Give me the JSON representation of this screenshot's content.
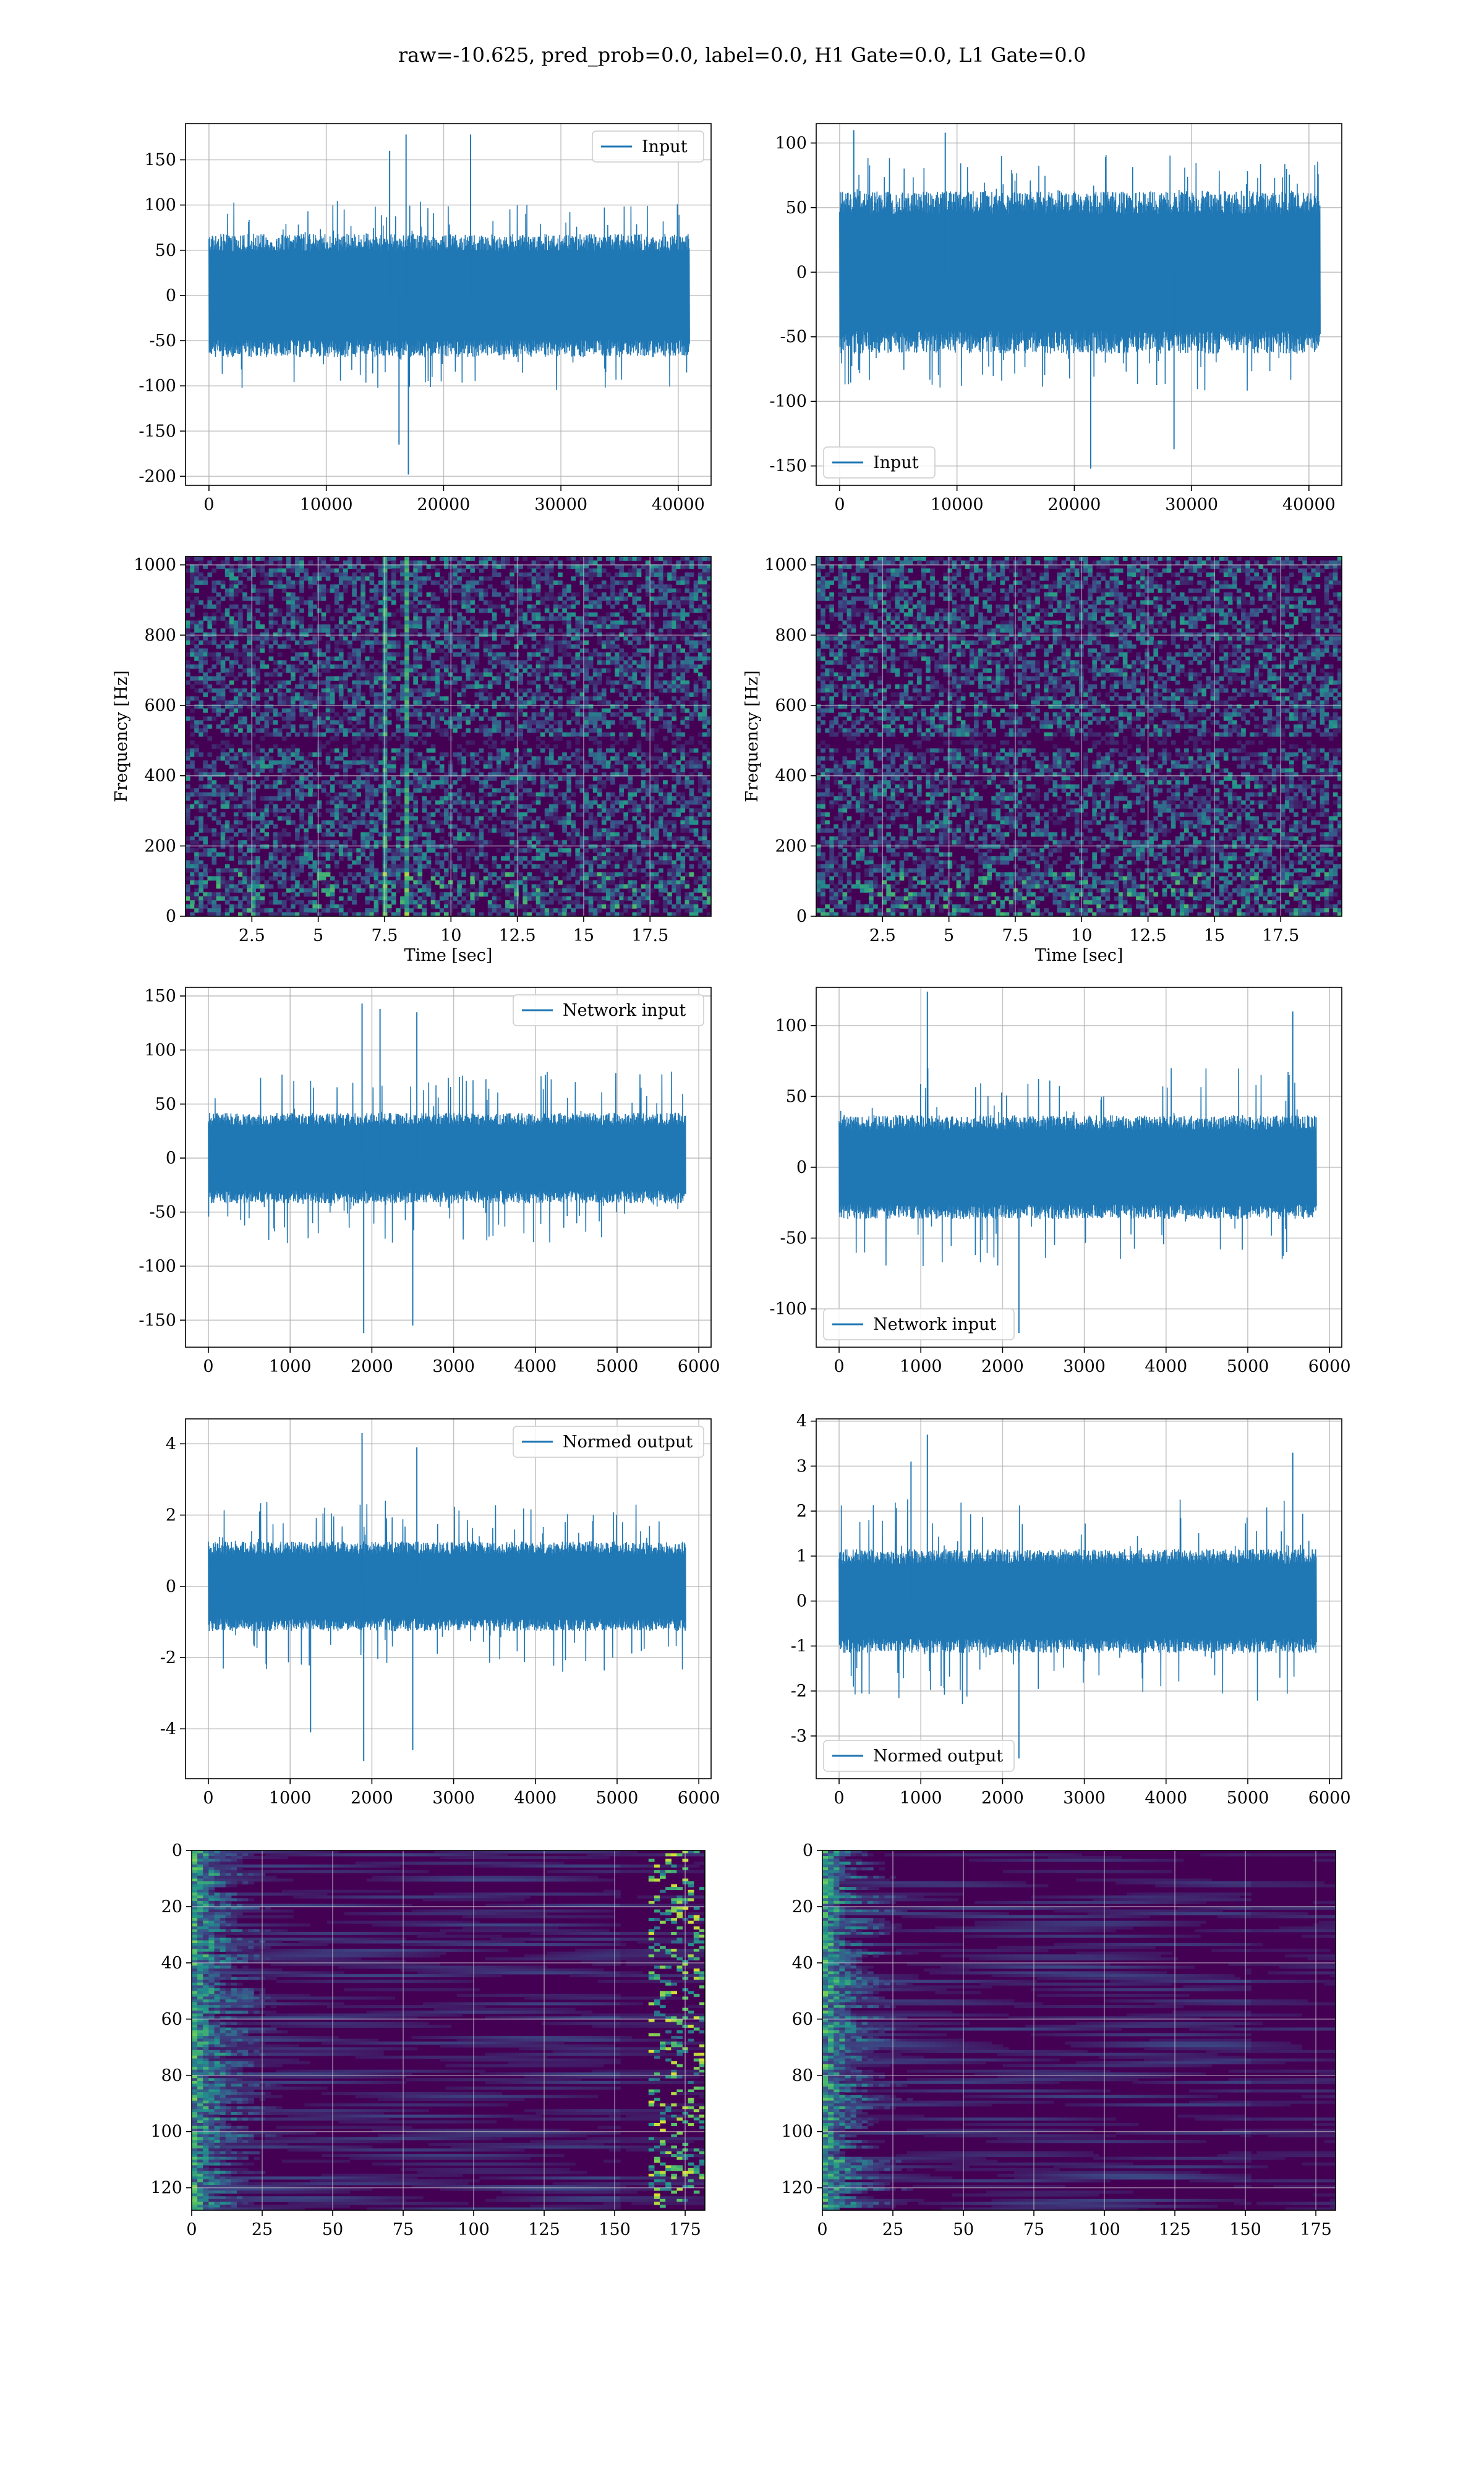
{
  "figure": {
    "title": "raw=-10.625, pred_prob=0.0, label=0.0, H1 Gate=0.0, L1 Gate=0.0"
  },
  "colors": {
    "line": "#1f77b4",
    "grid": "#b0b0b0",
    "viridis_low": "#440154",
    "viridis_mid": "#21918c",
    "viridis_high": "#fde725"
  },
  "chart_data": [
    {
      "id": "input-left",
      "type": "line",
      "xlim": [
        -2000,
        42800
      ],
      "ylim": [
        -210,
        190
      ],
      "xticks": [
        0,
        10000,
        20000,
        30000,
        40000
      ],
      "yticks": [
        -200,
        -150,
        -100,
        -50,
        0,
        50,
        100,
        150
      ],
      "series": [
        {
          "name": "Input",
          "n": 40960,
          "envelope": 65,
          "peak": 105,
          "spikes": [
            [
              15400,
              160
            ],
            [
              16200,
              -165
            ],
            [
              16800,
              178
            ],
            [
              17000,
              -198
            ],
            [
              22300,
              178
            ]
          ]
        }
      ],
      "legend": "upper right",
      "grid": true
    },
    {
      "id": "input-right",
      "type": "line",
      "xlim": [
        -2000,
        42800
      ],
      "ylim": [
        -165,
        115
      ],
      "xticks": [
        0,
        10000,
        20000,
        30000,
        40000
      ],
      "yticks": [
        -150,
        -100,
        -50,
        0,
        50,
        100
      ],
      "series": [
        {
          "name": "Input",
          "n": 40960,
          "envelope": 60,
          "peak": 92,
          "spikes": [
            [
              21400,
              -152
            ],
            [
              28500,
              -137
            ],
            [
              1200,
              110
            ],
            [
              9000,
              108
            ]
          ]
        }
      ],
      "legend": "lower left",
      "grid": true
    },
    {
      "id": "spectrogram-left",
      "type": "heatmap",
      "xlim": [
        0,
        19.8
      ],
      "ylim": [
        0,
        1024
      ],
      "xticks": [
        2.5,
        5.0,
        7.5,
        10.0,
        12.5,
        15.0,
        17.5
      ],
      "yticks": [
        0,
        200,
        400,
        600,
        800,
        1000
      ],
      "xlabel": "Time [sec]",
      "ylabel": "Frequency [Hz]",
      "features": {
        "bright_columns_sec": [
          7.5,
          8.2
        ],
        "dark_band_hz": 500
      },
      "grid": true
    },
    {
      "id": "spectrogram-right",
      "type": "heatmap",
      "xlim": [
        0,
        19.8
      ],
      "ylim": [
        0,
        1024
      ],
      "xticks": [
        2.5,
        5.0,
        7.5,
        10.0,
        12.5,
        15.0,
        17.5
      ],
      "yticks": [
        0,
        200,
        400,
        600,
        800,
        1000
      ],
      "xlabel": "Time [sec]",
      "ylabel": "Frequency [Hz]",
      "features": {
        "bright_columns_sec": [],
        "dark_band_hz": 500
      },
      "grid": true
    },
    {
      "id": "network-input-left",
      "type": "line",
      "xlim": [
        -280,
        6150
      ],
      "ylim": [
        -175,
        158
      ],
      "xticks": [
        0,
        1000,
        2000,
        3000,
        4000,
        5000,
        6000
      ],
      "yticks": [
        -150,
        -100,
        -50,
        0,
        50,
        100,
        150
      ],
      "series": [
        {
          "name": "Network input",
          "n": 5840,
          "envelope": 40,
          "peak": 80,
          "spikes": [
            [
              1900,
              -162
            ],
            [
              1880,
              143
            ],
            [
              2500,
              -155
            ],
            [
              2550,
              135
            ],
            [
              2100,
              138
            ]
          ]
        }
      ],
      "legend": "upper right",
      "grid": true
    },
    {
      "id": "network-input-right",
      "type": "line",
      "xlim": [
        -280,
        6150
      ],
      "ylim": [
        -127,
        127
      ],
      "xticks": [
        0,
        1000,
        2000,
        3000,
        4000,
        5000,
        6000
      ],
      "yticks": [
        -100,
        -50,
        0,
        50,
        100
      ],
      "series": [
        {
          "name": "Network input",
          "n": 5840,
          "envelope": 35,
          "peak": 70,
          "spikes": [
            [
              1080,
              124
            ],
            [
              2200,
              -117
            ],
            [
              5550,
              110
            ]
          ]
        }
      ],
      "legend": "lower left",
      "grid": true
    },
    {
      "id": "normed-output-left",
      "type": "line",
      "xlim": [
        -280,
        6150
      ],
      "ylim": [
        -5.4,
        4.7
      ],
      "xticks": [
        0,
        1000,
        2000,
        3000,
        4000,
        5000,
        6000
      ],
      "yticks": [
        -4,
        -2,
        0,
        2,
        4
      ],
      "series": [
        {
          "name": "Normed output",
          "n": 5840,
          "envelope": 1.2,
          "peak": 2.4,
          "spikes": [
            [
              1900,
              -4.9
            ],
            [
              1880,
              4.3
            ],
            [
              2500,
              -4.6
            ],
            [
              2550,
              3.9
            ],
            [
              1250,
              -4.1
            ]
          ]
        }
      ],
      "legend": "upper right",
      "grid": true
    },
    {
      "id": "normed-output-right",
      "type": "line",
      "xlim": [
        -280,
        6150
      ],
      "ylim": [
        -3.95,
        4.05
      ],
      "xticks": [
        0,
        1000,
        2000,
        3000,
        4000,
        5000,
        6000
      ],
      "yticks": [
        -3,
        -2,
        -1,
        0,
        1,
        2,
        3,
        4
      ],
      "series": [
        {
          "name": "Normed output",
          "n": 5840,
          "envelope": 1.1,
          "peak": 2.3,
          "spikes": [
            [
              1080,
              3.7
            ],
            [
              2200,
              -3.5
            ],
            [
              5550,
              3.3
            ],
            [
              880,
              3.1
            ]
          ]
        }
      ],
      "legend": "lower left",
      "grid": true
    },
    {
      "id": "activation-left",
      "type": "heatmap",
      "xlim": [
        0,
        182
      ],
      "ylim": [
        128,
        0
      ],
      "xticks": [
        0,
        25,
        50,
        75,
        100,
        125,
        150,
        175
      ],
      "yticks": [
        0,
        20,
        40,
        60,
        80,
        100,
        120
      ],
      "features": {
        "bright_edge": "left-and-right"
      },
      "grid": true
    },
    {
      "id": "activation-right",
      "type": "heatmap",
      "xlim": [
        0,
        182
      ],
      "ylim": [
        128,
        0
      ],
      "xticks": [
        0,
        25,
        50,
        75,
        100,
        125,
        150,
        175
      ],
      "yticks": [
        0,
        20,
        40,
        60,
        80,
        100,
        120
      ],
      "features": {
        "bright_edge": "left"
      },
      "grid": true
    }
  ]
}
